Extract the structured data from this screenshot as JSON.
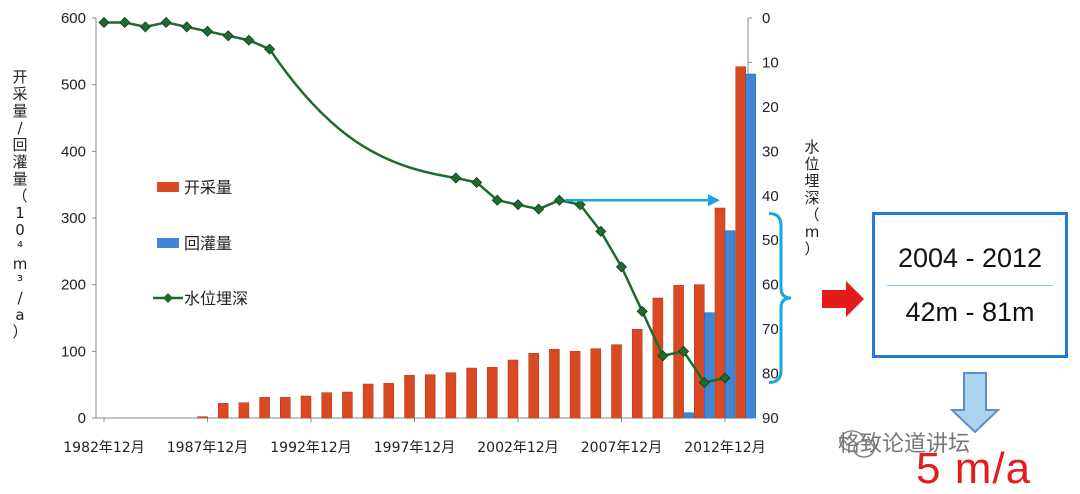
{
  "chart_data": {
    "type": "bar+line",
    "x_ticks": [
      "1982年12月",
      "1987年12月",
      "1992年12月",
      "1997年12月",
      "2002年12月",
      "2007年12月",
      "2012年12月"
    ],
    "bar_series": [
      {
        "name": "开采量",
        "color": "#d94a22",
        "values": [
          0,
          0,
          0,
          0,
          0,
          2,
          22,
          23,
          31,
          31,
          33,
          38,
          39,
          51,
          52,
          64,
          65,
          68,
          75,
          76,
          87,
          97,
          103,
          100,
          104,
          110,
          133,
          180,
          199,
          200,
          315,
          527
        ]
      },
      {
        "name": "回灌量",
        "color": "#3f86d6",
        "values": [
          0,
          0,
          0,
          0,
          0,
          0,
          0,
          0,
          0,
          0,
          0,
          0,
          0,
          0,
          0,
          0,
          0,
          0,
          0,
          0,
          0,
          0,
          0,
          0,
          0,
          0,
          0,
          0,
          8,
          158,
          281,
          516
        ]
      }
    ],
    "line_series": {
      "name": "水位埋深",
      "color": "#1e6b2e",
      "points": [
        [
          0,
          1
        ],
        [
          1,
          1
        ],
        [
          2,
          2
        ],
        [
          3,
          1
        ],
        [
          4,
          2
        ],
        [
          5,
          3
        ],
        [
          6,
          4
        ],
        [
          7,
          5
        ],
        [
          8,
          7
        ],
        [
          17,
          36
        ],
        [
          18,
          37
        ],
        [
          19,
          41
        ],
        [
          20,
          42
        ],
        [
          21,
          43
        ],
        [
          22,
          41
        ],
        [
          23,
          42
        ],
        [
          24,
          48
        ],
        [
          25,
          56
        ],
        [
          26,
          66
        ],
        [
          27,
          76
        ],
        [
          28,
          75
        ],
        [
          29,
          82
        ],
        [
          30,
          81
        ]
      ]
    },
    "y_left": {
      "label": "开采量/回灌量（10⁴m³/a）",
      "min": 0,
      "max": 600,
      "ticks": [
        0,
        100,
        200,
        300,
        400,
        500,
        600
      ]
    },
    "y_right": {
      "label": "水位埋深（m）",
      "min": 0,
      "max": 90,
      "inverted": true,
      "ticks": [
        0,
        10,
        20,
        30,
        40,
        50,
        60,
        70,
        80,
        90
      ]
    },
    "legend": {
      "position": "center-left",
      "items": [
        "开采量",
        "回灌量",
        "水位埋深"
      ]
    },
    "annotation": {
      "arrow_from_depth": 41,
      "arrow_to_depth": 41,
      "brace_range": [
        44,
        82
      ]
    }
  },
  "callout": {
    "period": "2004 - 2012",
    "range": "42m - 81m",
    "rate": "5 m/a"
  },
  "watermark": "格致论道讲坛",
  "colors": {
    "callout_border": "#1f7bd6",
    "brace": "#1aa6e0",
    "red_arrow": "#e51b1b",
    "down_arrow_fill": "#aed3f0",
    "down_arrow_stroke": "#5a8fc2"
  }
}
